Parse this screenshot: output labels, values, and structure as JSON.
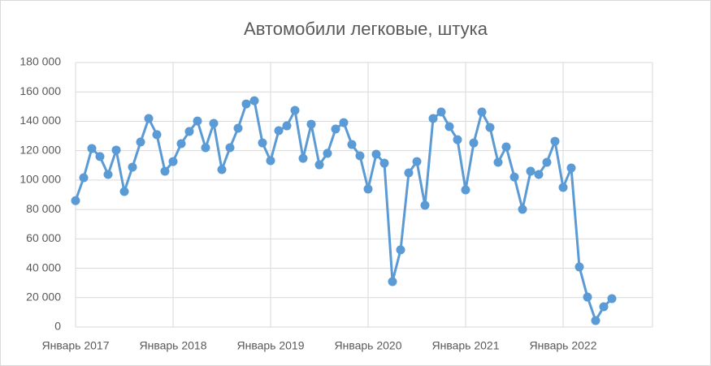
{
  "chart_data": {
    "type": "line",
    "title": "Автомобили легковые, штука",
    "categories": [
      "Январь 2017",
      null,
      null,
      null,
      null,
      null,
      null,
      null,
      null,
      null,
      null,
      null,
      "Январь 2018",
      null,
      null,
      null,
      null,
      null,
      null,
      null,
      null,
      null,
      null,
      null,
      "Январь 2019",
      null,
      null,
      null,
      null,
      null,
      null,
      null,
      null,
      null,
      null,
      null,
      "Январь 2020",
      null,
      null,
      null,
      null,
      null,
      null,
      null,
      null,
      null,
      null,
      null,
      "Январь 2021",
      null,
      null,
      null,
      null,
      null,
      null,
      null,
      null,
      null,
      null,
      null,
      "Январь 2022",
      null,
      null,
      null,
      null,
      null,
      null,
      null,
      null,
      null,
      null,
      null
    ],
    "series": [
      {
        "name": null,
        "color": "#5b9bd5",
        "values": [
          86000,
          101600,
          121500,
          116000,
          103800,
          120400,
          92200,
          108800,
          125900,
          141900,
          130900,
          106000,
          112600,
          124800,
          133100,
          140200,
          122000,
          138600,
          107100,
          122000,
          135300,
          151800,
          154000,
          125300,
          113200,
          133600,
          136900,
          147400,
          114800,
          138000,
          110400,
          118200,
          134700,
          139100,
          124200,
          116500,
          93900,
          117600,
          111500,
          30900,
          52500,
          104900,
          112600,
          82800,
          141900,
          146300,
          136400,
          127500,
          93300,
          125300,
          146300,
          135800,
          112100,
          122600,
          102100,
          80100,
          106000,
          103800,
          112100,
          126400,
          95000,
          108200,
          40900,
          20400,
          4400,
          13800,
          19300,
          null,
          null,
          null,
          null,
          null
        ]
      }
    ],
    "ylim": [
      0,
      180000
    ],
    "yticks": [
      {
        "value": 0,
        "label": "0"
      },
      {
        "value": 20000,
        "label": "20 000"
      },
      {
        "value": 40000,
        "label": "40 000"
      },
      {
        "value": 60000,
        "label": "60 000"
      },
      {
        "value": 80000,
        "label": "80 000"
      },
      {
        "value": 100000,
        "label": "100 000"
      },
      {
        "value": 120000,
        "label": "120 000"
      },
      {
        "value": 140000,
        "label": "140 000"
      },
      {
        "value": 160000,
        "label": "160 000"
      },
      {
        "value": 180000,
        "label": "180 000"
      }
    ],
    "grid": true
  }
}
